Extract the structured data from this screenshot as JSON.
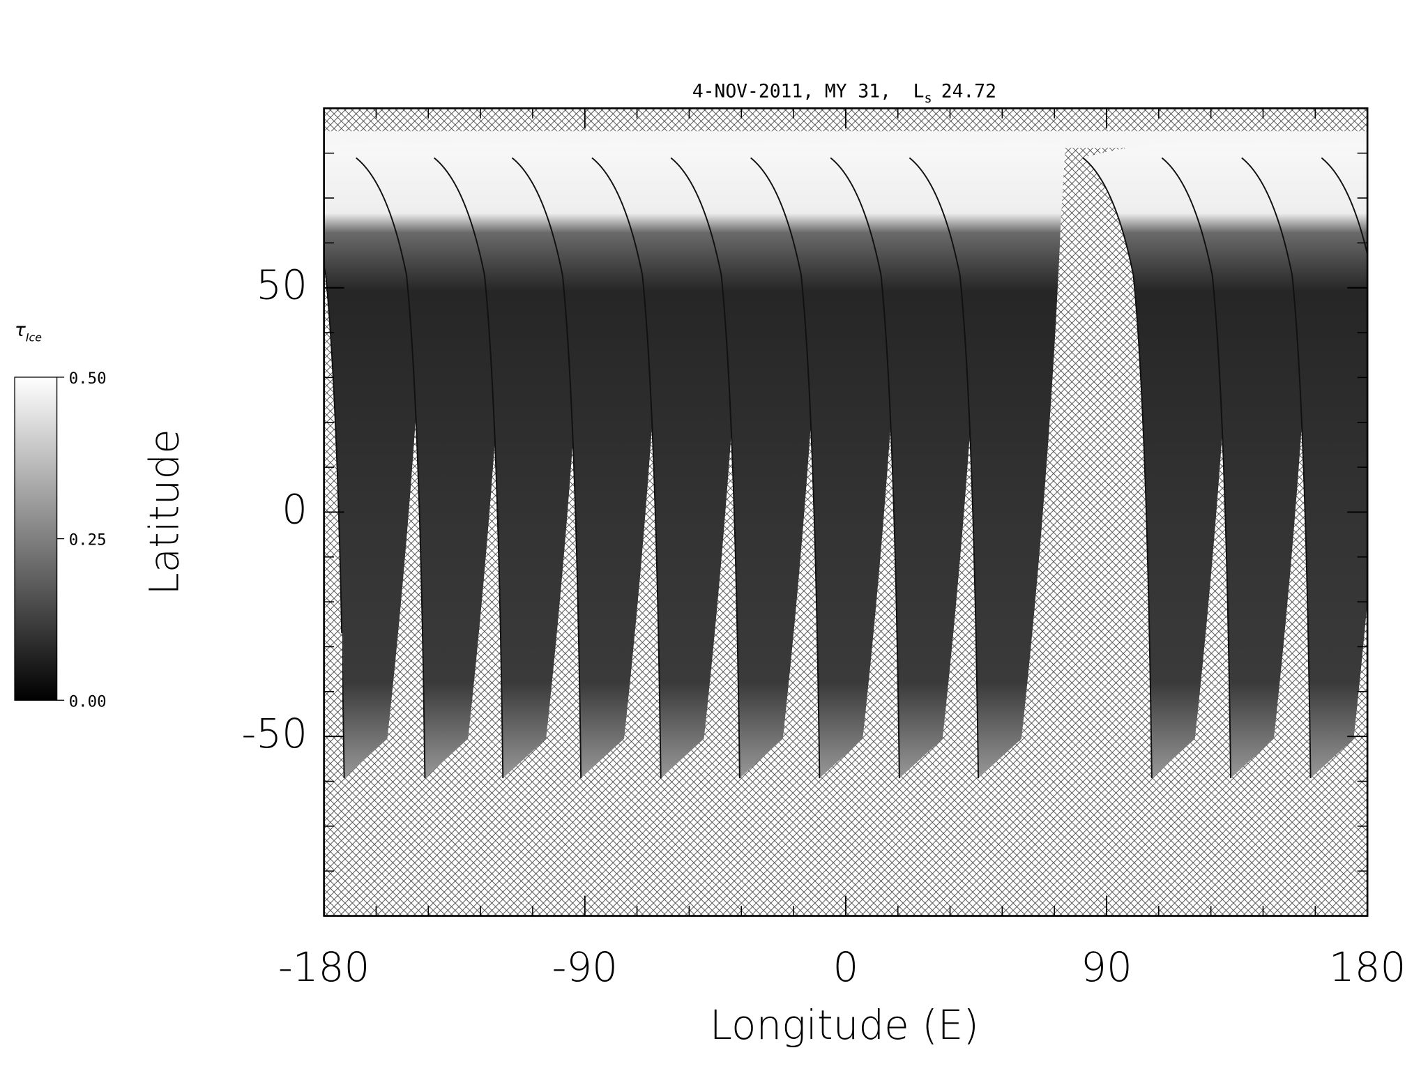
{
  "chart_data": {
    "type": "map",
    "title": {
      "text": "4-NOV-2011, MY 31,  L",
      "subscript": "s",
      "value": "24.72"
    },
    "x_label": "Longitude (E)",
    "y_label": "Latitude",
    "xlim": [
      -180,
      180
    ],
    "xticks": [
      -180,
      -90,
      0,
      90,
      180
    ],
    "x_minor_ticks": [
      -162,
      -144,
      -126,
      -108,
      -72,
      -54,
      -36,
      -18,
      18,
      36,
      54,
      72,
      108,
      126,
      144,
      162
    ],
    "ylim": [
      -90,
      90
    ],
    "yticks": [
      -50,
      0,
      50
    ],
    "y_minor_ticks": [
      -80,
      -70,
      -60,
      -40,
      -30,
      -20,
      -10,
      10,
      20,
      30,
      40,
      60,
      70,
      80
    ],
    "colorbar": {
      "label": "τ",
      "label_subscript": "Ice",
      "lim": [
        0,
        0.5
      ],
      "ticks": [
        {
          "value": 0,
          "label": "0.00"
        },
        {
          "value": 0.25,
          "label": "0.25"
        },
        {
          "value": 0.5,
          "label": "0.50"
        }
      ]
    }
  }
}
